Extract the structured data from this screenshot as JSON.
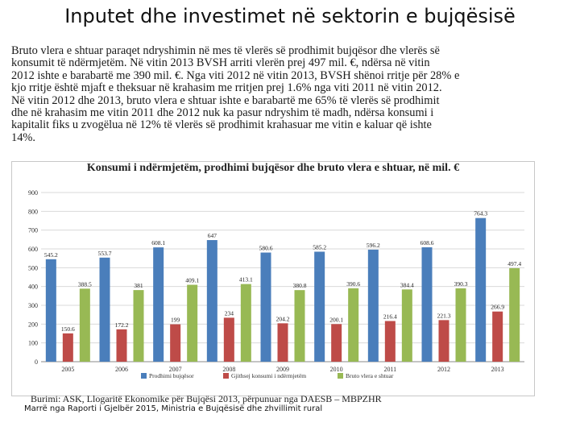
{
  "title": "Inputet dhe investimet në sektorin e bujqësisë",
  "body_lines": [
    "Bruto vlera e shtuar paraqet ndryshimin në mes të vlerës së prodhimit bujqësor dhe vlerës së",
    "konsumit të ndërmjetëm. Në vitin 2013 BVSH arriti vlerën prej 497 mil. €, ndërsa në vitin",
    "2012 ishte e barabartë me 390 mil. €. Nga viti 2012 në vitin 2013, BVSH shënoi rritje për 28% e",
    "kjo rritje është mjaft e theksuar në krahasim me rritjen prej 1.6% nga viti 2011 në vitin 2012.",
    "Në vitin 2012 dhe 2013, bruto vlera e shtuar ishte e barabartë me 65% të vlerës së prodhimit",
    "dhe në krahasim me vitin 2011 dhe 2012 nuk ka pasur ndryshim të madh, ndërsa konsumi i",
    "kapitalit fiks u zvogëlua në 12% të vlerës së prodhimit krahasuar me vitin e kaluar që ishte",
    "14%."
  ],
  "source": "Burimi: ASK, Llogaritë Ekonomike për Bujqësi 2013, përpunuar nga DAESB – MBPZHR",
  "credit": "Marrë nga Raporti i Gjelbër 2015, Ministria e Bujqësisë dhe zhvillimit rural",
  "colors": {
    "production": "#4a7ebb",
    "consumption": "#be4b48",
    "gva": "#98b954",
    "grid": "#d9d9d9"
  },
  "chart_data": {
    "type": "bar",
    "title": "Konsumi i ndërmjetëm, prodhimi bujqësor dhe bruto vlera e shtuar, në mil. €",
    "categories": [
      "2005",
      "2006",
      "2007",
      "2008",
      "2009",
      "2010",
      "2011",
      "2012",
      "2013"
    ],
    "series": [
      {
        "name": "Prodhimi bujqësor",
        "values": [
          545.2,
          553.7,
          608.1,
          647,
          580.6,
          585.2,
          596.2,
          608.6,
          764.3
        ]
      },
      {
        "name": "Gjithsej konsumi i ndërmjetëm",
        "values": [
          150.6,
          172.2,
          199,
          234,
          204.2,
          200.1,
          216.4,
          221.3,
          266.9
        ]
      },
      {
        "name": "Bruto vlera e shtuar",
        "values": [
          388.5,
          381,
          409.1,
          413.1,
          380.8,
          390.6,
          384.4,
          390.3,
          497.4
        ]
      }
    ],
    "data_labels": [
      [
        "545.2",
        "553.7",
        "608.1",
        "647",
        "580.6",
        "585.2",
        "596.2",
        "608.6",
        "764.3"
      ],
      [
        "150.6",
        "172.2",
        "199",
        "234",
        "204.2",
        "200.1",
        "216.4",
        "221.3",
        "266.9"
      ],
      [
        "388.5",
        "381",
        "409.1",
        "413.1",
        "380.8",
        "390.6",
        "384.4",
        "390.3",
        "497.4"
      ]
    ],
    "yticks": [
      "0",
      "100",
      "200",
      "300",
      "400",
      "500",
      "600",
      "700",
      "800",
      "900"
    ],
    "ylim": [
      0,
      900
    ],
    "grid": true,
    "legend_position": "bottom"
  }
}
